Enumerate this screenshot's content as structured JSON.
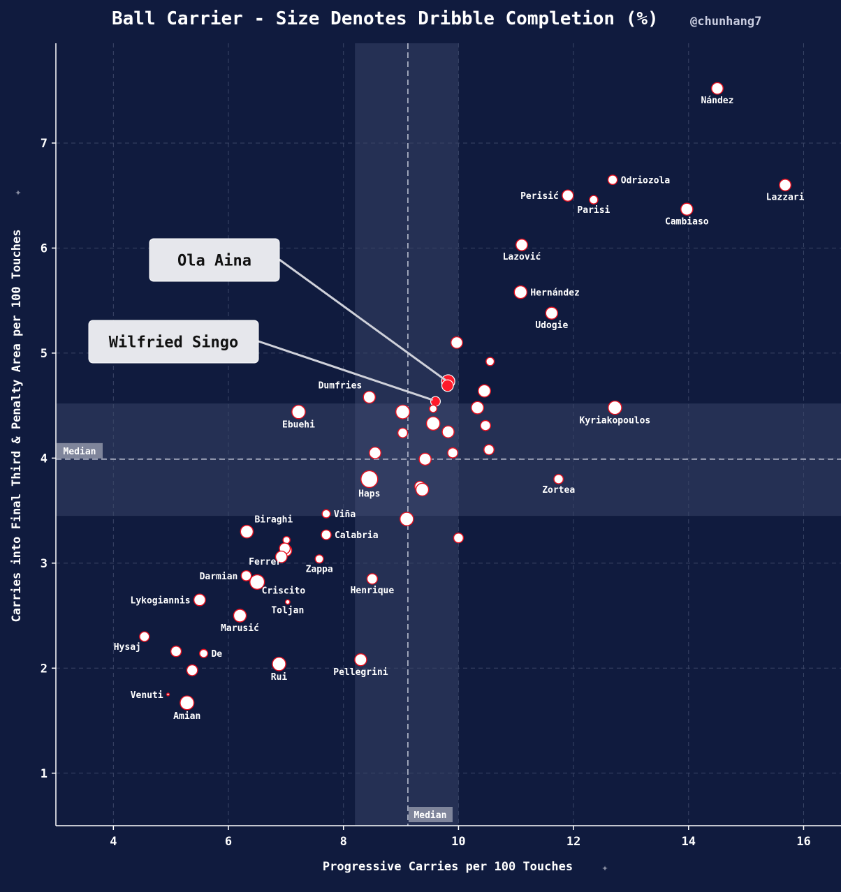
{
  "title": "Ball Carrier - Size Denotes Dribble Completion (%)",
  "handle": "@chunhang7",
  "median_label": "Median",
  "pin_glyph": "✦",
  "colors": {
    "background": "#101b3e",
    "point_fill": "#ffffff",
    "point_edge": "#e8101f",
    "highlight": "#ff1a2a",
    "iqr_band": "#4a5478",
    "median_box": "#8a8fa3",
    "callout_box": "#e6e7ec"
  },
  "chart_data": {
    "type": "scatter",
    "title": "Ball Carrier - Size Denotes Dribble Completion (%)",
    "xlabel": "Progressive Carries per 100 Touches",
    "ylabel": "Carries into Final Third & Penalty Area per 100 Touches",
    "xlim": [
      3,
      16.65
    ],
    "ylim": [
      0.5,
      7.95
    ],
    "xticks": [
      4,
      6,
      8,
      10,
      12,
      14,
      16
    ],
    "yticks": [
      1,
      2,
      3,
      4,
      5,
      6,
      7
    ],
    "grid": true,
    "median": {
      "x": 9.12,
      "y": 3.99
    },
    "iqr": {
      "x": [
        8.2,
        10.0
      ],
      "y": [
        3.45,
        4.52
      ]
    },
    "size_meaning": "Dribble Completion (%)",
    "points": [
      {
        "name": "Nández",
        "x": 14.5,
        "y": 7.52,
        "size": 62
      },
      {
        "name": "Odriozola",
        "x": 12.68,
        "y": 6.65,
        "size": 50
      },
      {
        "name": "Perisić",
        "x": 11.9,
        "y": 6.5,
        "size": 60
      },
      {
        "name": "Parisi",
        "x": 12.35,
        "y": 6.46,
        "size": 45
      },
      {
        "name": "Lazzari",
        "x": 15.68,
        "y": 6.6,
        "size": 62
      },
      {
        "name": "Cambiaso",
        "x": 13.97,
        "y": 6.37,
        "size": 64
      },
      {
        "name": "Lazović",
        "x": 11.1,
        "y": 6.03,
        "size": 62
      },
      {
        "name": "Hernández",
        "x": 11.08,
        "y": 5.58,
        "size": 68
      },
      {
        "name": "Udogie",
        "x": 11.62,
        "y": 5.38,
        "size": 64
      },
      {
        "name": "",
        "x": 9.97,
        "y": 5.1,
        "size": 62
      },
      {
        "name": "",
        "x": 10.55,
        "y": 4.92,
        "size": 44
      },
      {
        "name": "Ola Aina",
        "x": 9.82,
        "y": 4.73,
        "size": 72,
        "highlight": true
      },
      {
        "name": "",
        "x": 9.81,
        "y": 4.69,
        "size": 62,
        "highlight": true
      },
      {
        "name": "Wilfried Singo",
        "x": 9.6,
        "y": 4.54,
        "size": 52,
        "highlight": true
      },
      {
        "name": "",
        "x": 9.56,
        "y": 4.47,
        "size": 40
      },
      {
        "name": "",
        "x": 10.45,
        "y": 4.64,
        "size": 66
      },
      {
        "name": "",
        "x": 10.33,
        "y": 4.48,
        "size": 66
      },
      {
        "name": "Kyriakopoulos",
        "x": 12.72,
        "y": 4.48,
        "size": 72
      },
      {
        "name": "Dumfries",
        "x": 8.45,
        "y": 4.58,
        "size": 64
      },
      {
        "name": "Ebuehi",
        "x": 7.22,
        "y": 4.44,
        "size": 72
      },
      {
        "name": "",
        "x": 9.03,
        "y": 4.44,
        "size": 74
      },
      {
        "name": "",
        "x": 9.56,
        "y": 4.33,
        "size": 72
      },
      {
        "name": "",
        "x": 10.47,
        "y": 4.31,
        "size": 54
      },
      {
        "name": "",
        "x": 9.03,
        "y": 4.24,
        "size": 52
      },
      {
        "name": "",
        "x": 9.82,
        "y": 4.25,
        "size": 64
      },
      {
        "name": "",
        "x": 8.55,
        "y": 4.05,
        "size": 62
      },
      {
        "name": "",
        "x": 9.9,
        "y": 4.05,
        "size": 54
      },
      {
        "name": "",
        "x": 10.53,
        "y": 4.08,
        "size": 54
      },
      {
        "name": "",
        "x": 9.42,
        "y": 3.99,
        "size": 64
      },
      {
        "name": "Haps",
        "x": 8.45,
        "y": 3.8,
        "size": 90
      },
      {
        "name": "Zortea",
        "x": 11.74,
        "y": 3.8,
        "size": 50
      },
      {
        "name": "",
        "x": 9.33,
        "y": 3.73,
        "size": 56
      },
      {
        "name": "",
        "x": 9.37,
        "y": 3.7,
        "size": 68
      },
      {
        "name": "Viña",
        "x": 7.7,
        "y": 3.47,
        "size": 44
      },
      {
        "name": "",
        "x": 9.1,
        "y": 3.42,
        "size": 72
      },
      {
        "name": "Biraghi",
        "x": 6.32,
        "y": 3.3,
        "size": 68
      },
      {
        "name": "Calabria",
        "x": 7.7,
        "y": 3.27,
        "size": 52
      },
      {
        "name": "",
        "x": 10.0,
        "y": 3.24,
        "size": 52
      },
      {
        "name": "",
        "x": 7.01,
        "y": 3.22,
        "size": 38
      },
      {
        "name": "Ferrer",
        "x": 7.0,
        "y": 3.12,
        "size": 62
      },
      {
        "name": "",
        "x": 6.98,
        "y": 3.14,
        "size": 58
      },
      {
        "name": "",
        "x": 6.92,
        "y": 3.06,
        "size": 62
      },
      {
        "name": "Zappa",
        "x": 7.58,
        "y": 3.04,
        "size": 44
      },
      {
        "name": "Darmian",
        "x": 6.31,
        "y": 2.88,
        "size": 54
      },
      {
        "name": "Criscito",
        "x": 6.5,
        "y": 2.82,
        "size": 78
      },
      {
        "name": "Henrique",
        "x": 8.5,
        "y": 2.85,
        "size": 56
      },
      {
        "name": "Lykogiannis",
        "x": 5.5,
        "y": 2.65,
        "size": 62
      },
      {
        "name": "Toljan",
        "x": 7.03,
        "y": 2.63,
        "size": 24
      },
      {
        "name": "Marusić",
        "x": 6.2,
        "y": 2.5,
        "size": 68
      },
      {
        "name": "Hysaj",
        "x": 4.54,
        "y": 2.3,
        "size": 52
      },
      {
        "name": "",
        "x": 5.09,
        "y": 2.16,
        "size": 56
      },
      {
        "name": "De",
        "x": 5.57,
        "y": 2.14,
        "size": 44
      },
      {
        "name": "Pellegrini",
        "x": 8.3,
        "y": 2.08,
        "size": 64
      },
      {
        "name": "Rui",
        "x": 6.88,
        "y": 2.04,
        "size": 72
      },
      {
        "name": "",
        "x": 5.37,
        "y": 1.98,
        "size": 58
      },
      {
        "name": "Venuti",
        "x": 4.95,
        "y": 1.75,
        "size": 14
      },
      {
        "name": "Amian",
        "x": 5.28,
        "y": 1.67,
        "size": 74
      }
    ],
    "annotations": [
      {
        "text": "Ola Aina",
        "target": "Ola Aina"
      },
      {
        "text": "Wilfried Singo",
        "target": "Wilfried Singo"
      }
    ]
  }
}
